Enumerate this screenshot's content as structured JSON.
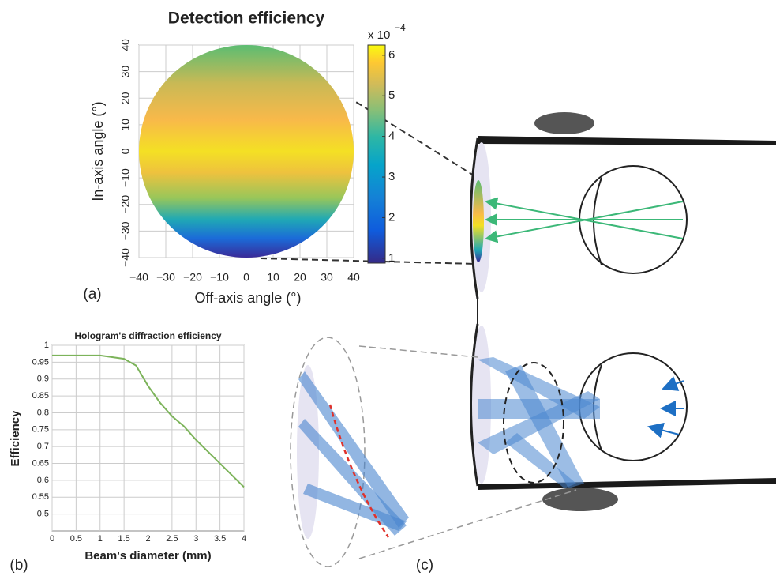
{
  "chart_data": [
    {
      "type": "heatmap-disc",
      "title": "Detection efficiency",
      "x_label": "Off-axis angle (°)",
      "y_label": "In-axis angle (°)",
      "panel_label": "(a)",
      "xlim": [
        -40,
        40
      ],
      "ylim": [
        -40,
        40
      ],
      "xticks": [
        {
          "value": -40,
          "label": "−40"
        },
        {
          "value": -30,
          "label": "−30"
        },
        {
          "value": -20,
          "label": "−20"
        },
        {
          "value": -10,
          "label": "−10"
        },
        0,
        10,
        20,
        30,
        40
      ],
      "yticks": [
        {
          "value": -40,
          "label": "−40"
        },
        {
          "value": -30,
          "label": "−30"
        },
        {
          "value": -20,
          "label": "−20"
        },
        {
          "value": -10,
          "label": "−10"
        },
        0,
        10,
        20,
        30,
        40
      ],
      "grid": true,
      "colorbar_label": "x 10",
      "colorbar_exponent": "−4",
      "clim": [
        0.88,
        6.25
      ],
      "cticks": [
        1,
        2,
        3,
        4,
        5,
        6
      ]
    },
    {
      "type": "line",
      "title": "Hologram's diffraction efficiency",
      "x_label": "Beam's diameter (mm)",
      "y_label": "Efficiency",
      "panel_label": "(b)",
      "x": [
        0,
        0.5,
        1,
        1.5,
        1.75,
        2,
        2.25,
        2.5,
        2.75,
        3,
        3.5,
        4
      ],
      "values": [
        0.97,
        0.97,
        0.97,
        0.96,
        0.94,
        0.88,
        0.83,
        0.79,
        0.76,
        0.72,
        0.65,
        0.58
      ],
      "color": "#7cb35a",
      "xlim": [
        0,
        4
      ],
      "ylim": [
        0.45,
        1
      ],
      "xticks": [
        0,
        0.5,
        1,
        1.5,
        2,
        2.5,
        3,
        3.5,
        4
      ],
      "yticks": [
        0.5,
        0.55,
        0.6,
        0.65,
        0.7,
        0.75,
        0.8,
        0.85,
        0.9,
        0.95,
        1
      ],
      "grid": true
    }
  ],
  "diagram": {
    "panel_label": "(c)"
  }
}
